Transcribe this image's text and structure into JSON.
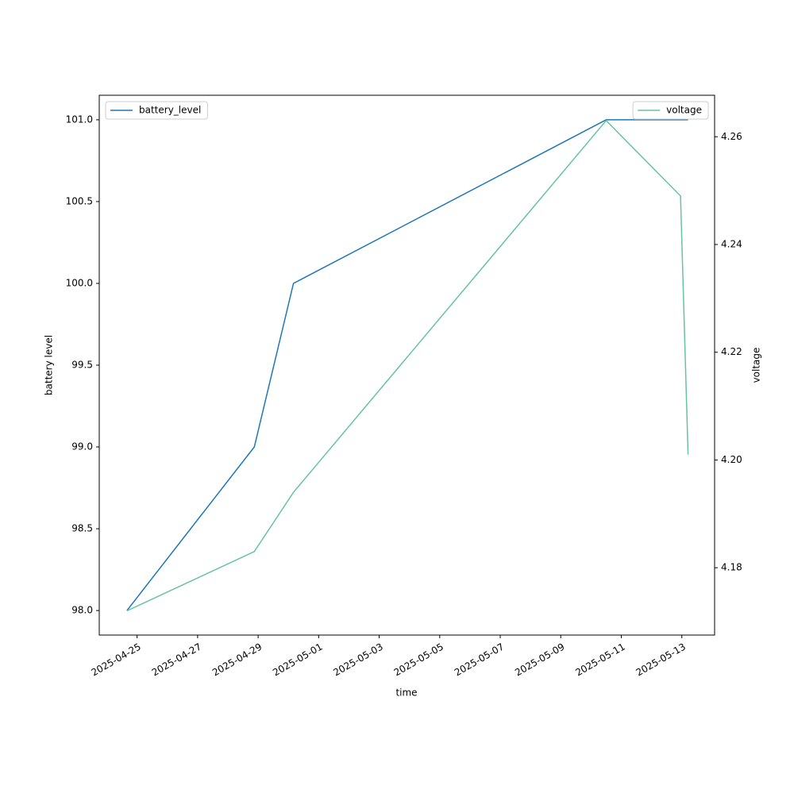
{
  "chart_data": {
    "type": "line",
    "x_label": "time",
    "y_label": "battery level",
    "y2_label": "voltage",
    "x": [
      "2025-04-24T16:00",
      "2025-04-28T21:00",
      "2025-04-30T04:00",
      "2025-05-10T12:00",
      "2025-05-12T23:00",
      "2025-05-13T05:00"
    ],
    "series": [
      {
        "name": "battery_level",
        "color": "#1f77b4",
        "values": [
          98,
          99,
          100,
          101,
          101,
          101
        ]
      },
      {
        "name": "voltage",
        "color": "#66c2a5",
        "axis": "y2",
        "values": [
          4.172,
          4.183,
          4.194,
          4.263,
          4.249,
          4.201
        ]
      }
    ],
    "xlim": [
      "2025-04-23T18:00",
      "2025-05-14T02:00"
    ],
    "xticks": [
      "2025-04-25",
      "2025-04-27",
      "2025-04-29",
      "2025-05-01",
      "2025-05-03",
      "2025-05-05",
      "2025-05-07",
      "2025-05-09",
      "2025-05-11",
      "2025-05-13"
    ],
    "ylim": [
      97.85,
      101.15
    ],
    "yticks": [
      {
        "value": 98,
        "label": "98.0"
      },
      {
        "value": 98.5,
        "label": "98.5"
      },
      {
        "value": 99,
        "label": "99.0"
      },
      {
        "value": 99.5,
        "label": "99.5"
      },
      {
        "value": 100,
        "label": "100.0"
      },
      {
        "value": 100.5,
        "label": "100.5"
      },
      {
        "value": 101,
        "label": "101.0"
      }
    ],
    "y2lim": [
      4.1675,
      4.2677
    ],
    "y2ticks": [
      4.18,
      {
        "value": 4.2,
        "label": "4.20"
      },
      4.22,
      4.24,
      4.26
    ],
    "legend": [
      "upper left",
      "upper right"
    ],
    "grid": false
  }
}
